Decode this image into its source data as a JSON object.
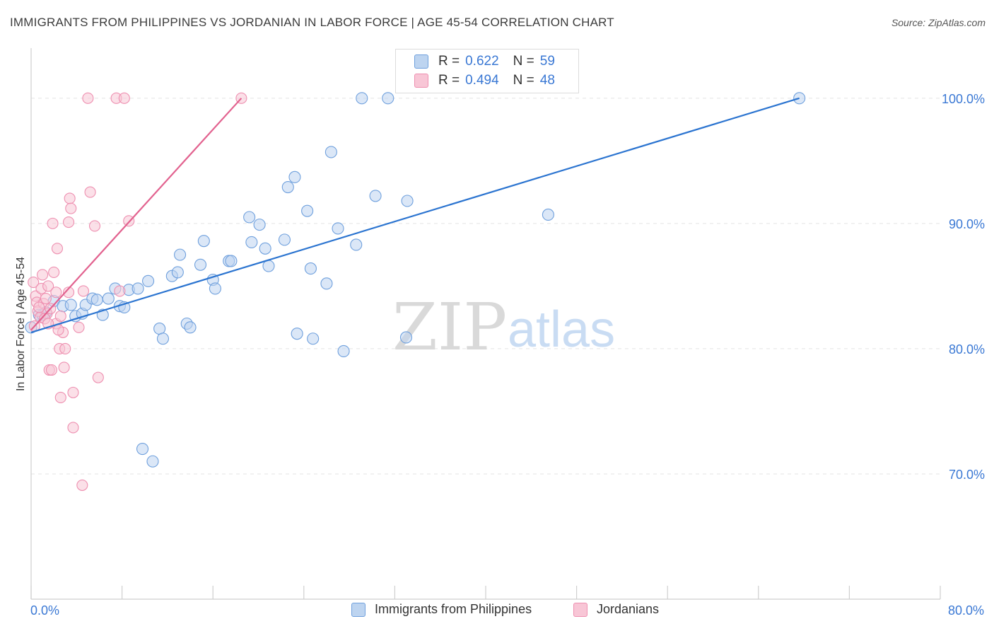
{
  "title": "IMMIGRANTS FROM PHILIPPINES VS JORDANIAN IN LABOR FORCE | AGE 45-54 CORRELATION CHART",
  "source": "Source: ZipAtlas.com",
  "watermark": {
    "zip": "ZIP",
    "atlas": "atlas"
  },
  "legend": {
    "r_label": "R =",
    "n_label": "N =",
    "series": [
      {
        "r": "0.622",
        "n": "59"
      },
      {
        "r": "0.494",
        "n": "48"
      }
    ]
  },
  "chart_data": {
    "type": "scatter",
    "title": "IMMIGRANTS FROM PHILIPPINES VS JORDANIAN IN LABOR FORCE | AGE 45-54 CORRELATION CHART",
    "xlabel": "",
    "ylabel": "In Labor Force | Age 45-54",
    "xlim": [
      0,
      80
    ],
    "ylim": [
      60,
      104
    ],
    "x_tick_labels": [
      "0.0%",
      "80.0%"
    ],
    "y_ticks": [
      70,
      80,
      90,
      100
    ],
    "y_tick_labels": [
      "70.0%",
      "80.0%",
      "90.0%",
      "100.0%"
    ],
    "grid": true,
    "series": [
      {
        "name": "Immigrants from Philippines",
        "color": "#6fa0dd",
        "fill": "#bdd4f0",
        "line_color": "#2b74d0",
        "trend": {
          "x": [
            0.0,
            67.6
          ],
          "y": [
            81.3,
            100.0
          ]
        },
        "points": [
          [
            0.0,
            81.7
          ],
          [
            0.7,
            82.7
          ],
          [
            1.0,
            82.7
          ],
          [
            1.3,
            82.9
          ],
          [
            2.0,
            83.8
          ],
          [
            2.8,
            83.4
          ],
          [
            3.5,
            83.5
          ],
          [
            3.9,
            82.6
          ],
          [
            4.5,
            82.8
          ],
          [
            4.8,
            83.5
          ],
          [
            5.4,
            84.0
          ],
          [
            5.8,
            83.9
          ],
          [
            6.3,
            82.7
          ],
          [
            6.8,
            84.0
          ],
          [
            7.4,
            84.8
          ],
          [
            7.8,
            83.4
          ],
          [
            8.2,
            83.3
          ],
          [
            8.6,
            84.7
          ],
          [
            9.4,
            84.8
          ],
          [
            10.3,
            85.4
          ],
          [
            11.3,
            81.6
          ],
          [
            11.6,
            80.8
          ],
          [
            12.4,
            85.8
          ],
          [
            12.9,
            86.1
          ],
          [
            13.1,
            87.5
          ],
          [
            13.7,
            82.0
          ],
          [
            14.0,
            81.7
          ],
          [
            14.9,
            86.7
          ],
          [
            15.2,
            88.6
          ],
          [
            16.0,
            85.5
          ],
          [
            16.2,
            84.8
          ],
          [
            17.4,
            87.0
          ],
          [
            17.6,
            87.0
          ],
          [
            19.2,
            90.5
          ],
          [
            19.4,
            88.5
          ],
          [
            20.1,
            89.9
          ],
          [
            20.6,
            88.0
          ],
          [
            20.9,
            86.6
          ],
          [
            22.3,
            88.7
          ],
          [
            22.6,
            92.9
          ],
          [
            23.2,
            93.7
          ],
          [
            23.4,
            81.2
          ],
          [
            24.3,
            91.0
          ],
          [
            24.6,
            86.4
          ],
          [
            24.8,
            80.8
          ],
          [
            26.0,
            85.2
          ],
          [
            26.4,
            95.7
          ],
          [
            27.0,
            89.6
          ],
          [
            27.5,
            79.8
          ],
          [
            28.6,
            88.3
          ],
          [
            29.1,
            100.0
          ],
          [
            30.3,
            92.2
          ],
          [
            31.4,
            100.0
          ],
          [
            33.1,
            91.8
          ],
          [
            33.0,
            80.9
          ],
          [
            45.5,
            90.7
          ],
          [
            67.6,
            100.0
          ],
          [
            9.8,
            72.0
          ],
          [
            10.7,
            71.0
          ]
        ]
      },
      {
        "name": "Jordanians",
        "color": "#ee8fb0",
        "fill": "#f8c6d6",
        "line_color": "#e2628f",
        "trend": {
          "x": [
            0.0,
            18.5
          ],
          "y": [
            81.5,
            100.0
          ]
        },
        "points": [
          [
            0.2,
            85.3
          ],
          [
            0.4,
            84.2
          ],
          [
            0.5,
            83.7
          ],
          [
            0.6,
            83.0
          ],
          [
            0.8,
            82.5
          ],
          [
            0.9,
            84.8
          ],
          [
            1.0,
            85.9
          ],
          [
            1.1,
            83.6
          ],
          [
            1.3,
            84.0
          ],
          [
            1.4,
            82.8
          ],
          [
            1.5,
            85.0
          ],
          [
            1.6,
            78.3
          ],
          [
            1.7,
            83.2
          ],
          [
            1.8,
            78.3
          ],
          [
            1.9,
            90.0
          ],
          [
            2.0,
            86.1
          ],
          [
            2.2,
            82.0
          ],
          [
            2.2,
            84.5
          ],
          [
            2.3,
            88.0
          ],
          [
            2.5,
            80.0
          ],
          [
            2.6,
            76.1
          ],
          [
            2.6,
            82.6
          ],
          [
            2.8,
            81.3
          ],
          [
            2.9,
            78.5
          ],
          [
            3.0,
            80.0
          ],
          [
            3.3,
            84.5
          ],
          [
            3.3,
            90.1
          ],
          [
            3.4,
            92.0
          ],
          [
            3.5,
            91.2
          ],
          [
            3.7,
            76.5
          ],
          [
            3.7,
            73.7
          ],
          [
            4.2,
            81.7
          ],
          [
            4.5,
            69.1
          ],
          [
            4.6,
            84.6
          ],
          [
            5.0,
            100.0
          ],
          [
            5.2,
            92.5
          ],
          [
            5.6,
            89.8
          ],
          [
            5.9,
            77.7
          ],
          [
            7.5,
            100.0
          ],
          [
            7.8,
            84.6
          ],
          [
            8.2,
            100.0
          ],
          [
            8.6,
            90.2
          ],
          [
            18.5,
            100.0
          ],
          [
            0.3,
            81.8
          ],
          [
            1.2,
            82.4
          ],
          [
            2.4,
            81.5
          ],
          [
            0.7,
            83.3
          ],
          [
            1.5,
            82.0
          ]
        ]
      }
    ]
  }
}
